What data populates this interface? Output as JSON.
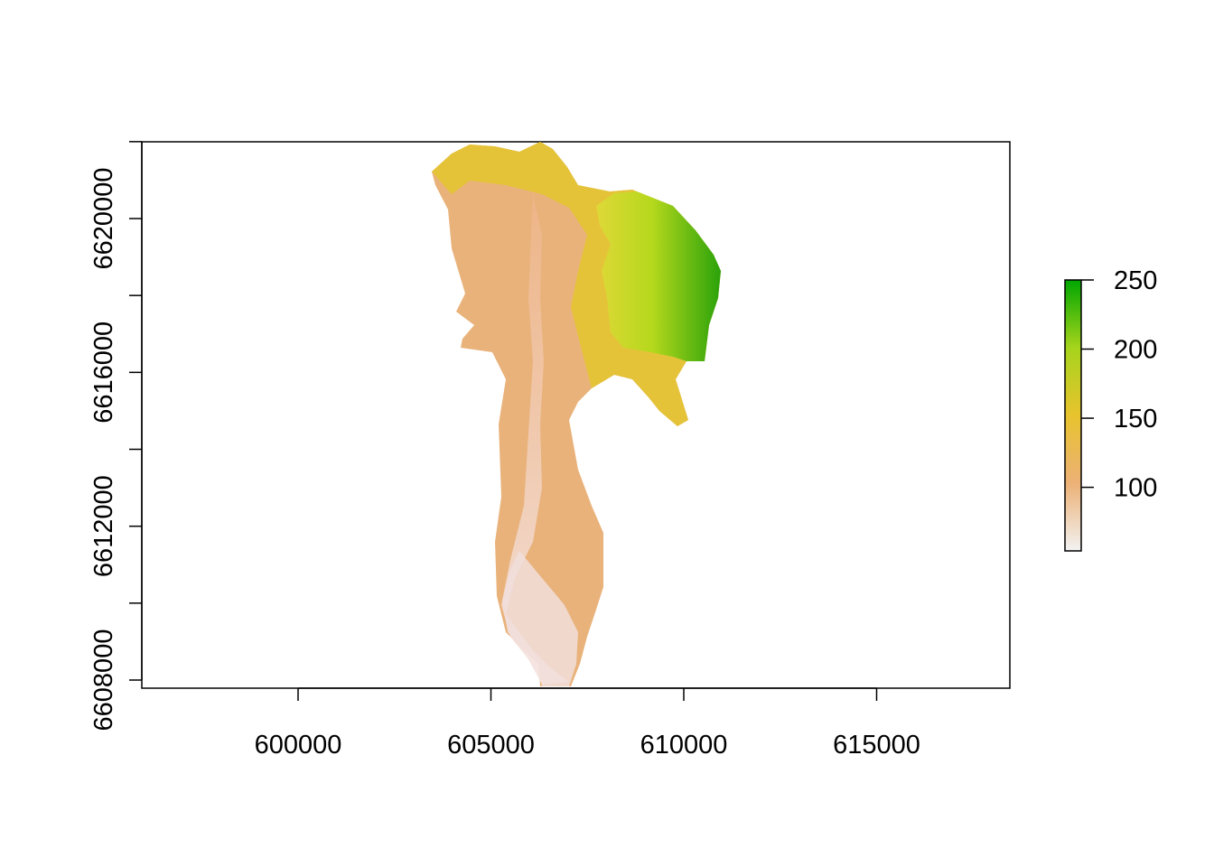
{
  "map": {
    "x_axis": {
      "ticks": [
        600000,
        605000,
        610000,
        615000
      ],
      "labels": [
        "600000",
        "605000",
        "610000",
        "615000"
      ]
    },
    "y_axis": {
      "ticks": [
        6608000,
        6610000,
        6612000,
        6614000,
        6616000,
        6618000,
        6620000,
        6622000
      ],
      "labels": [
        "6608000",
        "6612000",
        "6616000",
        "6620000"
      ]
    },
    "legend": {
      "labels": [
        "250",
        "200",
        "150",
        "100"
      ],
      "range": [
        54,
        250
      ],
      "colors": [
        "#f2f2f2",
        "#ecb176",
        "#e8c32e",
        "#a6d41c",
        "#00a600"
      ]
    }
  }
}
